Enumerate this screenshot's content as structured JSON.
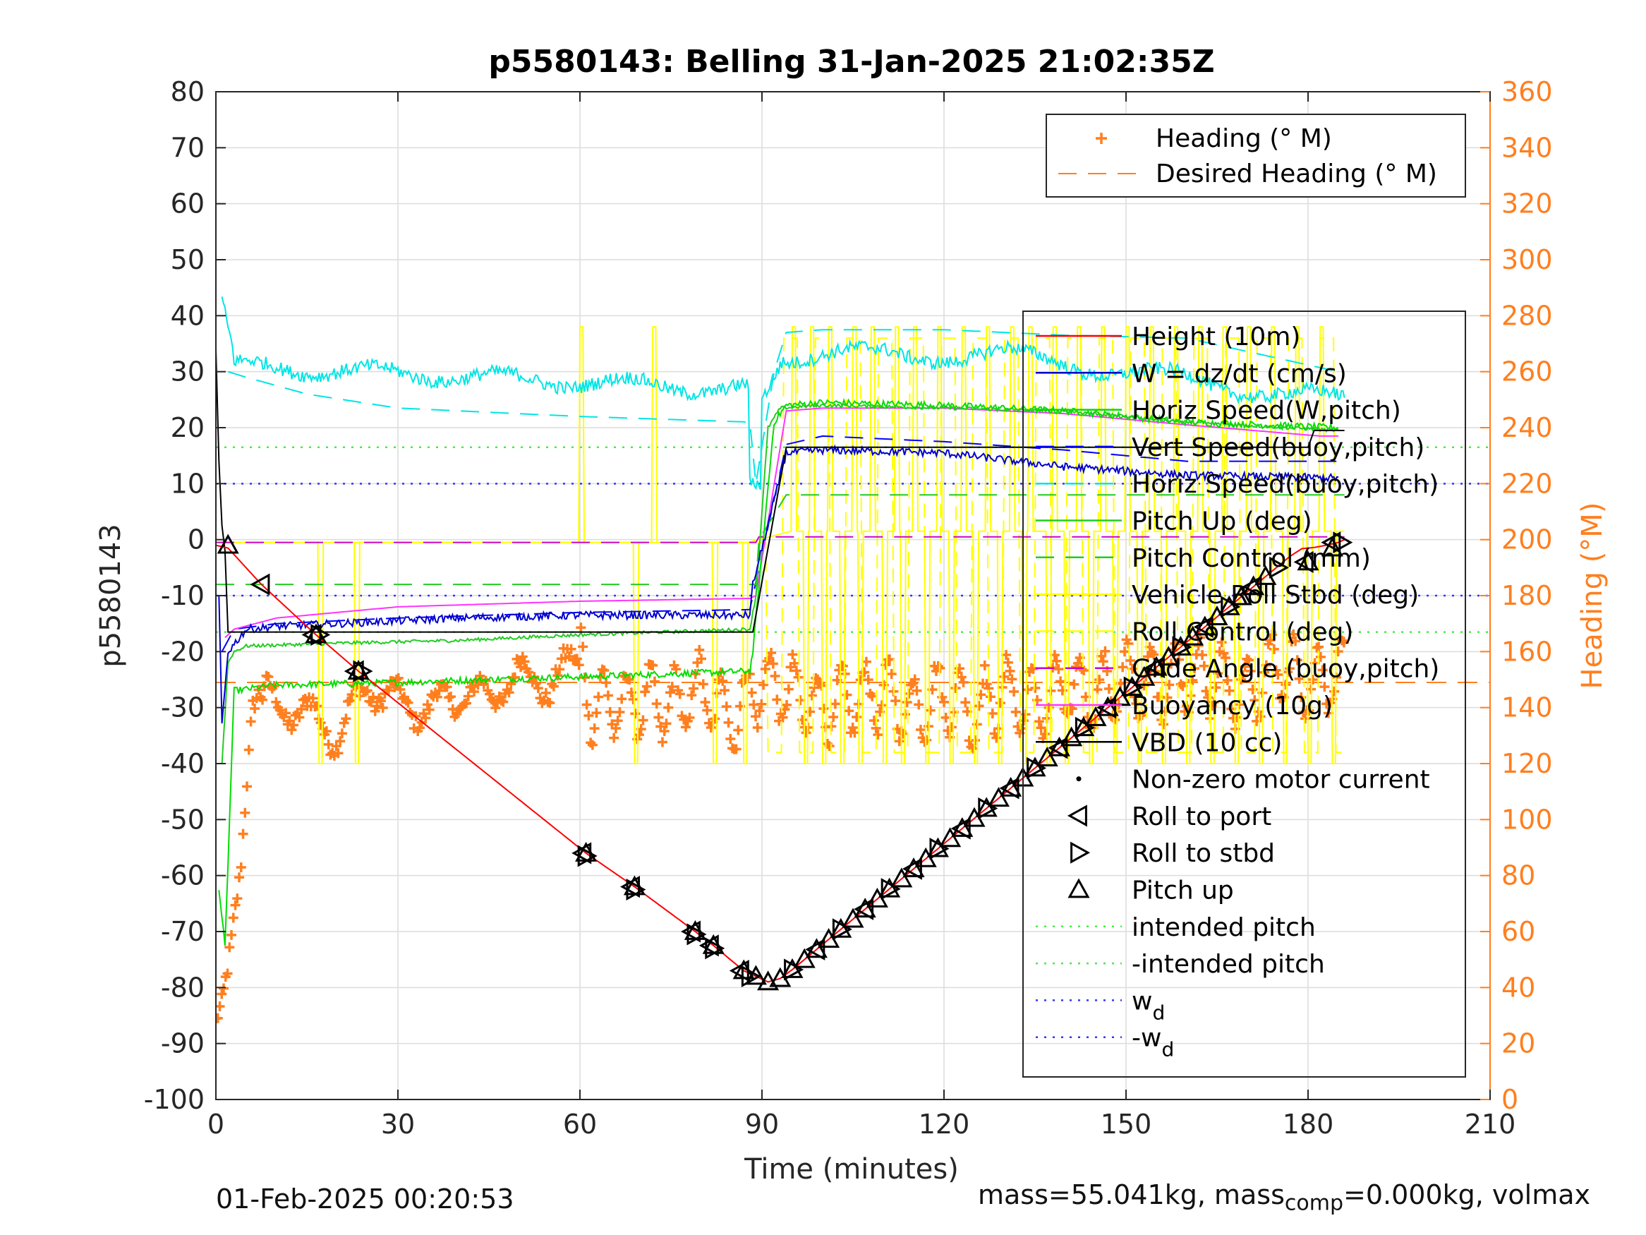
{
  "chart_data": {
    "type": "line",
    "title": "p5580143: Belling 31-Jan-2025 21:02:35Z",
    "xlabel": "Time (minutes)",
    "ylabel_left": "p5580143",
    "ylabel_right": "Heading (°M)",
    "xlim": [
      0,
      210
    ],
    "ylim_left": [
      -100,
      80
    ],
    "ylim_right": [
      0,
      360
    ],
    "xticks": [
      0,
      30,
      60,
      90,
      120,
      150,
      180,
      210
    ],
    "yticks_left": [
      -100,
      -90,
      -80,
      -70,
      -60,
      -50,
      -40,
      -30,
      -20,
      -10,
      0,
      10,
      20,
      30,
      40,
      50,
      60,
      70,
      80
    ],
    "yticks_right": [
      0,
      20,
      40,
      60,
      80,
      100,
      120,
      140,
      160,
      180,
      200,
      220,
      240,
      260,
      280,
      300,
      320,
      340,
      360
    ],
    "grid": true,
    "colors": {
      "height": "#ff0000",
      "w": "#0000cc",
      "horiz_speed_w": "#00dd00",
      "vert_speed_buoy": "#0000ff",
      "horiz_speed_buoy": "#00e5e5",
      "pitch": "#22cc22",
      "pitch_control": "#22cc22",
      "roll": "#ffff00",
      "roll_control": "#ffff00",
      "glide_angle": "#cc00cc",
      "buoyancy": "#ff33ff",
      "vbd": "#000000",
      "heading": "#ff7f1f",
      "intended_pitch": "#44ee44",
      "w_d": "#3333ff"
    },
    "height_dives": {
      "t": [
        0,
        2,
        7.5,
        16.5,
        23.5,
        61,
        69,
        79,
        82,
        87,
        89,
        91,
        93,
        95,
        97,
        99,
        101,
        103,
        105,
        107,
        109,
        111,
        113,
        115,
        117,
        119,
        121,
        123,
        125,
        127,
        129,
        131,
        133,
        135,
        137,
        139,
        141,
        143,
        145,
        147,
        149,
        151,
        153,
        155,
        157,
        159,
        161,
        163,
        165,
        167,
        169,
        171,
        173,
        175,
        177,
        179,
        181,
        183,
        185,
        186
      ],
      "v": [
        -1,
        -1.5,
        -8,
        -17,
        -23.5,
        -56,
        -62,
        -70,
        -72.5,
        -77,
        -78,
        -79,
        -78.4,
        -76.8,
        -75,
        -73.2,
        -71.4,
        -69.6,
        -67.8,
        -66,
        -64.2,
        -62.4,
        -60.6,
        -58.8,
        -57,
        -55.2,
        -53.4,
        -51.6,
        -49.8,
        -48,
        -46.2,
        -44.4,
        -42.6,
        -40.8,
        -39,
        -37.2,
        -35.4,
        -33.6,
        -31.8,
        -30,
        -28.2,
        -26.4,
        -24.6,
        -22.8,
        -21,
        -19.2,
        -17.4,
        -15.6,
        -13.8,
        -12,
        -10.2,
        -8.4,
        -6.6,
        -4.8,
        -3,
        -1.6,
        -1.4,
        -1,
        -0.5,
        0
      ]
    },
    "series": [
      {
        "name": "Height (10m)",
        "key": "height",
        "style": "solid"
      },
      {
        "name": "W = dz/dt (cm/s)",
        "key": "w",
        "style": "solid",
        "t": [
          0.5,
          1,
          2,
          5,
          10,
          20,
          40,
          60,
          80,
          88,
          88.5,
          94,
          100,
          120,
          140,
          160,
          185
        ],
        "v": [
          -10,
          -33,
          -20,
          -16,
          -15.5,
          -15,
          -14,
          -13.5,
          -13.5,
          -13.5,
          -8,
          15.5,
          16,
          15.5,
          13,
          11.5,
          11
        ]
      },
      {
        "name": "Horiz Speed(W,pitch)",
        "key": "horiz_speed_w",
        "style": "solid",
        "t": [
          0.5,
          1.5,
          3,
          10,
          30,
          60,
          88,
          88.5,
          92,
          94,
          100,
          120,
          140,
          160,
          185
        ],
        "v": [
          -62,
          -73,
          -27,
          -26,
          -25.5,
          -24.5,
          -23.5,
          -20,
          21,
          24,
          24.5,
          24,
          23,
          21,
          20
        ]
      },
      {
        "name": "Vert Speed(buoy,pitch)",
        "key": "vert_speed_buoy",
        "style": "dashed",
        "t": [
          1,
          3,
          10,
          30,
          60,
          88,
          88.5,
          94,
          100,
          120,
          140,
          160,
          185
        ],
        "v": [
          -20,
          -16,
          -15,
          -14,
          -13,
          -12.5,
          -10,
          17,
          18.5,
          17.5,
          16,
          14,
          14
        ]
      },
      {
        "name": "Horiz Speed(buoy,pitch)",
        "key": "horiz_speed_buoy",
        "style": "dashed",
        "t": [
          2,
          5,
          15,
          30,
          60,
          88,
          89,
          92,
          94,
          100,
          120,
          140,
          160,
          185
        ],
        "v": [
          30,
          29,
          26,
          23.5,
          22,
          21,
          10,
          30,
          37,
          37.5,
          37.5,
          36.5,
          36,
          30
        ]
      },
      {
        "name": "Pitch Up (deg)",
        "key": "pitch",
        "style": "solid",
        "t": [
          1,
          2,
          3,
          5,
          20,
          40,
          60,
          88,
          89,
          91,
          93,
          100,
          120,
          140,
          160,
          185
        ],
        "v": [
          -40,
          -22,
          -20,
          -19,
          -18.5,
          -18,
          -17,
          -16,
          -10,
          20,
          23.5,
          24,
          23.5,
          23,
          21,
          19.5
        ]
      },
      {
        "name": "Pitch Control (mm)",
        "key": "pitch_control",
        "style": "dashed",
        "t": [
          0,
          89,
          89.5,
          94,
          186
        ],
        "v": [
          -8,
          -8,
          0,
          8,
          8
        ]
      },
      {
        "name": "Vehicle Roll Stbd (deg)",
        "key": "roll",
        "style": "solid"
      },
      {
        "name": "Roll Control (deg)",
        "key": "roll_control",
        "style": "dashed"
      },
      {
        "name": "Glide Angle (buoy,pitch)",
        "key": "glide_angle",
        "style": "dashed",
        "t": [
          0,
          89,
          89.5,
          186
        ],
        "v": [
          -0.5,
          -0.5,
          0.5,
          0.5
        ]
      },
      {
        "name": "Buoyancy (10g)",
        "key": "buoyancy",
        "style": "solid",
        "t": [
          1.5,
          3,
          10,
          30,
          60,
          88,
          89,
          94,
          100,
          120,
          140,
          160,
          182,
          185
        ],
        "v": [
          -17.5,
          -16,
          -14,
          -12,
          -11,
          -10.5,
          -10,
          23,
          23.5,
          23.5,
          22.5,
          20.5,
          18.5,
          18.5
        ]
      },
      {
        "name": "VBD (10 cc)",
        "key": "vbd",
        "style": "solid",
        "t": [
          0,
          0.3,
          0.8,
          1.2,
          1.5,
          2,
          88.5,
          94,
          180,
          181,
          186
        ],
        "v": [
          34,
          20,
          5,
          0,
          -2,
          -16.5,
          -16.5,
          16.5,
          16.5,
          19.5,
          19.5
        ]
      },
      {
        "name": "Non-zero motor current",
        "key": "motor",
        "style": "dot"
      },
      {
        "name": "Roll to port",
        "key": "roll_port",
        "style": "marker"
      },
      {
        "name": "Roll to stbd",
        "key": "roll_stbd",
        "style": "marker"
      },
      {
        "name": "Pitch up",
        "key": "pitch_up",
        "style": "marker"
      },
      {
        "name": "intended pitch",
        "key": "intended_pitch",
        "style": "dotted",
        "value": 16.5
      },
      {
        "name": "-intended pitch",
        "key": "neg_intended_pitch",
        "style": "dotted",
        "value": -16.5
      },
      {
        "name": "w",
        "sub": "d",
        "key": "w_d",
        "style": "dotted",
        "value": 10
      },
      {
        "name": "-w",
        "sub": "d",
        "key": "neg_w_d",
        "style": "dotted",
        "value": -10
      }
    ],
    "heading": {
      "name": "Heading (° M)",
      "desired_name": "Desired Heading (° M)",
      "desired_value": 149,
      "t": [
        0,
        1,
        2,
        3,
        4,
        5,
        6,
        7,
        10,
        15,
        20,
        25,
        30,
        35,
        40,
        45,
        50,
        55,
        60,
        62,
        65,
        68,
        70,
        75,
        80,
        85,
        90,
        95,
        100,
        105,
        110,
        115,
        120,
        125,
        130,
        135,
        140,
        145,
        150,
        155,
        160,
        165,
        170,
        175,
        180,
        185
      ],
      "v": [
        28,
        35,
        48,
        65,
        80,
        110,
        140,
        145,
        141,
        138,
        130,
        148,
        142,
        139,
        145,
        144,
        152,
        148,
        158,
        140,
        142,
        141,
        143,
        140,
        147,
        136,
        149,
        145,
        140,
        143,
        145,
        139,
        145,
        138,
        146,
        140,
        147,
        145,
        150,
        148,
        152,
        150,
        145,
        155,
        148,
        152
      ]
    },
    "roll_pattern": {
      "base_dive": -0.5,
      "base_climb": 1.5,
      "spikes_up": [
        60,
        72,
        95,
        98,
        101,
        105,
        108,
        112,
        115,
        119,
        123,
        127,
        131,
        134,
        138,
        142,
        146,
        150,
        154,
        158,
        162,
        166,
        170,
        174,
        178,
        182
      ],
      "spikes_down": [
        17,
        23,
        69,
        82,
        87,
        97,
        100,
        103,
        106,
        110,
        113,
        117,
        121,
        125,
        129,
        133,
        137,
        140,
        144,
        148,
        152,
        156,
        160,
        164,
        168,
        172,
        176,
        180,
        184
      ]
    },
    "markers": {
      "pitch_up": [
        [
          2,
          -1
        ],
        [
          16.5,
          -17
        ],
        [
          23.5,
          -23.5
        ],
        [
          61,
          -56
        ],
        [
          69,
          -62
        ],
        [
          79,
          -70
        ],
        [
          82,
          -72.5
        ],
        [
          87,
          -77
        ],
        [
          89,
          -78
        ],
        [
          91,
          -79
        ],
        [
          93,
          -78.4
        ],
        [
          95,
          -76.8
        ],
        [
          97,
          -75
        ],
        [
          99,
          -73.2
        ],
        [
          101,
          -71.4
        ],
        [
          103,
          -69.6
        ],
        [
          105,
          -67.8
        ],
        [
          107,
          -66
        ],
        [
          109,
          -64.2
        ],
        [
          111,
          -62.4
        ],
        [
          113,
          -60.6
        ],
        [
          115,
          -58.8
        ],
        [
          117,
          -57
        ],
        [
          119,
          -55.2
        ],
        [
          121,
          -53.4
        ],
        [
          123,
          -51.6
        ],
        [
          125,
          -49.8
        ],
        [
          127,
          -48
        ],
        [
          129,
          -46.2
        ],
        [
          131,
          -44.4
        ],
        [
          133,
          -42.6
        ],
        [
          135,
          -40.8
        ],
        [
          137,
          -39
        ],
        [
          139,
          -37.2
        ],
        [
          141,
          -35.4
        ],
        [
          143,
          -33.6
        ],
        [
          145,
          -31.8
        ],
        [
          147,
          -30
        ],
        [
          149,
          -28.2
        ],
        [
          151,
          -26.4
        ],
        [
          153,
          -24.6
        ],
        [
          155,
          -22.8
        ],
        [
          157,
          -21
        ],
        [
          159,
          -19.2
        ],
        [
          161,
          -17.4
        ],
        [
          163,
          -15.6
        ],
        [
          165,
          -13.8
        ],
        [
          167,
          -12
        ],
        [
          169,
          -10.2
        ],
        [
          171,
          -8.4
        ],
        [
          173,
          -6.6
        ],
        [
          180,
          -4
        ],
        [
          184,
          -1.5
        ]
      ],
      "roll_port": [
        [
          7.5,
          -8
        ],
        [
          16,
          -17
        ],
        [
          23,
          -23.5
        ],
        [
          60.5,
          -56
        ],
        [
          68.5,
          -62
        ],
        [
          78.5,
          -70
        ],
        [
          81.5,
          -72.5
        ],
        [
          86.5,
          -77
        ],
        [
          99,
          -73.2
        ],
        [
          107,
          -66
        ],
        [
          115,
          -58.8
        ],
        [
          123,
          -51.6
        ],
        [
          131,
          -44.4
        ],
        [
          139,
          -37.2
        ],
        [
          147,
          -30
        ],
        [
          155,
          -22.8
        ],
        [
          163,
          -15.6
        ],
        [
          171,
          -8.4
        ],
        [
          179.5,
          -4
        ],
        [
          184,
          -0.5
        ]
      ],
      "roll_stbd": [
        [
          17,
          -17
        ],
        [
          24,
          -23.5
        ],
        [
          61,
          -56.5
        ],
        [
          69,
          -62.5
        ],
        [
          79,
          -70.5
        ],
        [
          82,
          -73
        ],
        [
          88,
          -78
        ],
        [
          95,
          -76.8
        ],
        [
          103,
          -69.6
        ],
        [
          111,
          -62.4
        ],
        [
          119,
          -55.2
        ],
        [
          127,
          -48
        ],
        [
          135,
          -40.8
        ],
        [
          143,
          -33.6
        ],
        [
          151,
          -26.4
        ],
        [
          159,
          -19.2
        ],
        [
          167,
          -12
        ],
        [
          175,
          -5
        ],
        [
          185.5,
          -0.5
        ]
      ]
    }
  },
  "footer": {
    "timestamp": "01-Feb-2025 00:20:53",
    "mass_text": "mass=55.041kg, mass",
    "mass_sub": "comp",
    "mass_rest": "=0.000kg, volmax"
  }
}
